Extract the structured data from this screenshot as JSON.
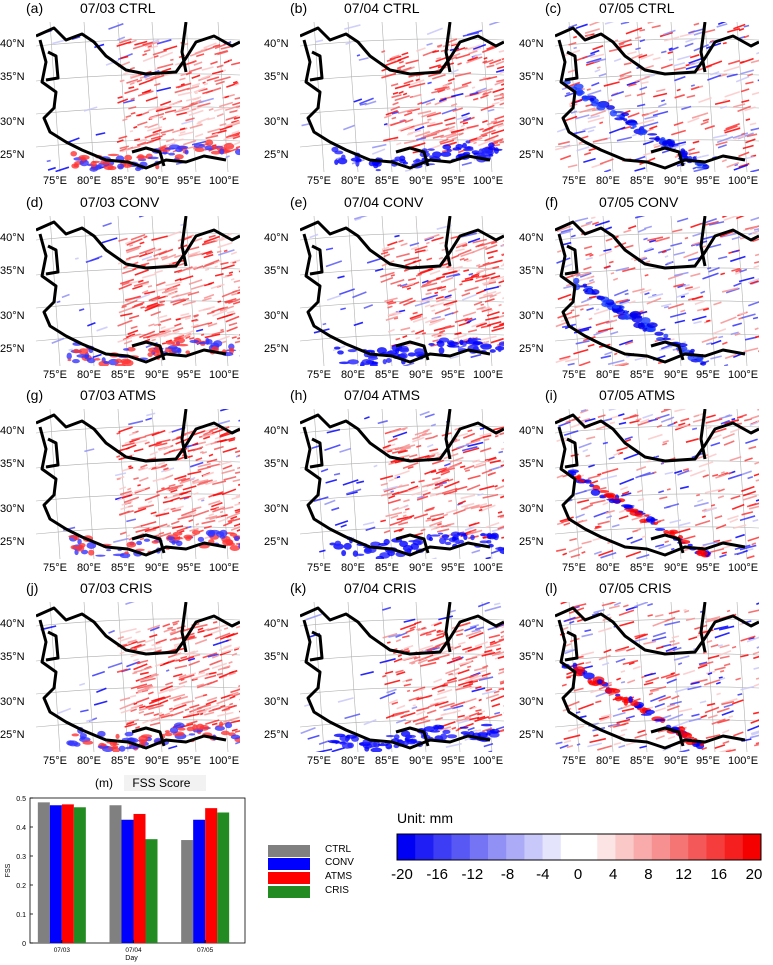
{
  "panels": [
    {
      "id": "a",
      "letter": "(a)",
      "title": "07/03 CTRL",
      "seed": 11,
      "bias": 0.35,
      "himalaya": 0
    },
    {
      "id": "b",
      "letter": "(b)",
      "title": "07/04 CTRL",
      "seed": 12,
      "bias": 0.25,
      "himalaya": 1
    },
    {
      "id": "c",
      "letter": "(c)",
      "title": "07/05 CTRL",
      "seed": 13,
      "bias": 0.0,
      "himalaya": 2
    },
    {
      "id": "d",
      "letter": "(d)",
      "title": "07/03 CONV",
      "seed": 21,
      "bias": 0.35,
      "himalaya": 0
    },
    {
      "id": "e",
      "letter": "(e)",
      "title": "07/04 CONV",
      "seed": 22,
      "bias": 0.25,
      "himalaya": 1
    },
    {
      "id": "f",
      "letter": "(f)",
      "title": "07/05 CONV",
      "seed": 23,
      "bias": 0.0,
      "himalaya": 2
    },
    {
      "id": "g",
      "letter": "(g)",
      "title": "07/03 ATMS",
      "seed": 31,
      "bias": 0.35,
      "himalaya": 0
    },
    {
      "id": "h",
      "letter": "(h)",
      "title": "07/04 ATMS",
      "seed": 32,
      "bias": 0.25,
      "himalaya": 1
    },
    {
      "id": "i",
      "letter": "(i)",
      "title": "07/05 ATMS",
      "seed": 33,
      "bias": 0.1,
      "himalaya": 3
    },
    {
      "id": "j",
      "letter": "(j)",
      "title": "07/03 CRIS",
      "seed": 41,
      "bias": 0.35,
      "himalaya": 0
    },
    {
      "id": "k",
      "letter": "(k)",
      "title": "07/04 CRIS",
      "seed": 42,
      "bias": 0.25,
      "himalaya": 1
    },
    {
      "id": "l",
      "letter": "(l)",
      "title": "07/05 CRIS",
      "seed": 43,
      "bias": 0.1,
      "himalaya": 3
    }
  ],
  "map_axes": {
    "lat_labels": [
      "40°N",
      "35°N",
      "30°N",
      "25°N"
    ],
    "lon_labels": [
      "75°E",
      "80°E",
      "85°E",
      "90°E",
      "95°E",
      "100°E"
    ]
  },
  "fss": {
    "letter": "(m)",
    "title": "FSS Score",
    "ylabel": "FSS",
    "xlabel": "Day"
  },
  "chart_data": {
    "type": "bar",
    "title": "FSS Score",
    "xlabel": "Day",
    "ylabel": "FSS",
    "categories": [
      "07/03",
      "07/04",
      "07/05"
    ],
    "ylim": [
      0,
      0.5
    ],
    "yticks": [
      "0",
      "0.1",
      "0.2",
      "0.3",
      "0.4",
      "0.5"
    ],
    "series": [
      {
        "name": "CTRL",
        "color": "#808080",
        "values": [
          0.485,
          0.475,
          0.355
        ]
      },
      {
        "name": "CONV",
        "color": "#0000ff",
        "values": [
          0.475,
          0.425,
          0.425
        ]
      },
      {
        "name": "ATMS",
        "color": "#ff0000",
        "values": [
          0.478,
          0.445,
          0.465
        ]
      },
      {
        "name": "CRIS",
        "color": "#228b22",
        "values": [
          0.468,
          0.358,
          0.45
        ]
      }
    ]
  },
  "colorbar": {
    "unit_label": "Unit: mm",
    "ticks": [
      "-20",
      "-16",
      "-12",
      "-8",
      "-4",
      "0",
      "4",
      "8",
      "12",
      "16",
      "20"
    ],
    "colors": [
      "#0000f5",
      "#1f1ff5",
      "#3d3df5",
      "#5858f5",
      "#7474f5",
      "#9090f5",
      "#ababf7",
      "#c8c8fa",
      "#e4e4fd",
      "#ffffff",
      "#ffffff",
      "#fde4e4",
      "#fbc8c8",
      "#f9abab",
      "#f79090",
      "#f57474",
      "#f55858",
      "#f53d3d",
      "#f51f1f",
      "#f50000"
    ]
  }
}
